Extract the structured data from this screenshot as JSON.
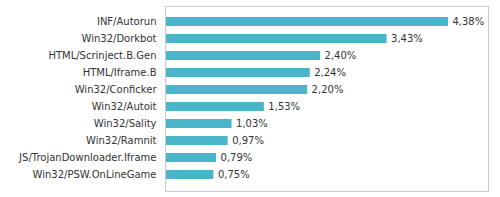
{
  "chart_data": {
    "type": "bar",
    "orientation": "horizontal",
    "categories": [
      "Win32/PSW.OnLineGame",
      "JS/TrojanDownloader.Iframe",
      "Win32/Ramnit",
      "Win32/Sality",
      "Win32/Autoit",
      "Win32/Conficker",
      "HTML/Iframe.B",
      "HTML/Scrinject.B.Gen",
      "Win32/Dorkbot",
      "INF/Autorun"
    ],
    "values": [
      0.75,
      0.79,
      0.97,
      1.03,
      1.53,
      2.2,
      2.24,
      2.4,
      3.43,
      4.38
    ],
    "value_labels": [
      "0,75%",
      "0,79%",
      "0,97%",
      "1,03%",
      "1,53%",
      "2,20%",
      "2,24%",
      "2,40%",
      "3,43%",
      "4,38%"
    ],
    "data_labels": true,
    "color": "#4ab4c8",
    "xlim": [
      0,
      5.0
    ],
    "tick_labels": "y"
  }
}
